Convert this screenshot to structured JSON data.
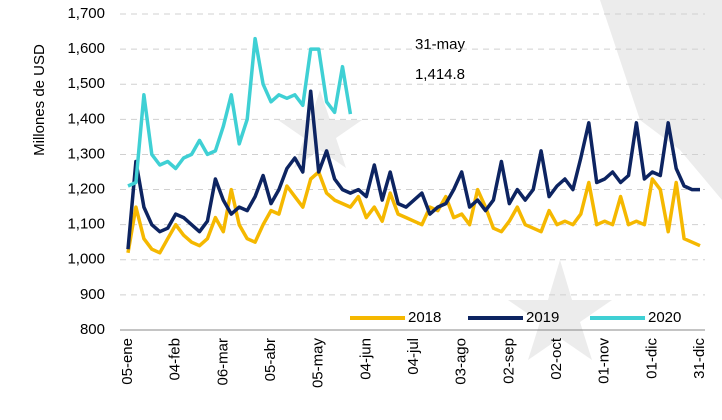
{
  "chart_data": {
    "type": "line",
    "y_label": "Millones de USD",
    "annotations": [
      "31-may",
      "1,414.8"
    ],
    "categories": [
      "05-ene",
      null,
      null,
      null,
      null,
      null,
      "04-feb",
      null,
      null,
      null,
      null,
      null,
      "06-mar",
      null,
      null,
      null,
      null,
      null,
      "05-abr",
      null,
      null,
      null,
      null,
      null,
      "05-may",
      null,
      null,
      null,
      null,
      null,
      "04-jun",
      null,
      null,
      null,
      null,
      null,
      "04-jul",
      null,
      null,
      null,
      null,
      null,
      "03-ago",
      null,
      null,
      null,
      null,
      null,
      "02-sep",
      null,
      null,
      null,
      null,
      null,
      "02-oct",
      null,
      null,
      null,
      null,
      null,
      "01-nov",
      null,
      null,
      null,
      null,
      null,
      "01-dic",
      null,
      null,
      null,
      null,
      null,
      "31-dic"
    ],
    "series": [
      {
        "name": "2018",
        "color": "#f5b800",
        "values": [
          1020,
          1150,
          1060,
          1030,
          1020,
          1060,
          1100,
          1070,
          1050,
          1040,
          1060,
          1120,
          1080,
          1200,
          1100,
          1060,
          1050,
          1100,
          1140,
          1130,
          1210,
          1180,
          1150,
          1230,
          1250,
          1190,
          1170,
          1160,
          1150,
          1180,
          1120,
          1150,
          1110,
          1190,
          1130,
          1120,
          1110,
          1100,
          1150,
          1140,
          1180,
          1120,
          1130,
          1100,
          1200,
          1150,
          1090,
          1080,
          1110,
          1150,
          1100,
          1090,
          1080,
          1140,
          1100,
          1110,
          1100,
          1130,
          1220,
          1100,
          1110,
          1100,
          1180,
          1100,
          1110,
          1100,
          1230,
          1200,
          1080,
          1220,
          1060,
          1050,
          1040
        ]
      },
      {
        "name": "2019",
        "color": "#0d2461",
        "values": [
          1030,
          1280,
          1150,
          1100,
          1080,
          1090,
          1130,
          1120,
          1100,
          1080,
          1110,
          1230,
          1170,
          1130,
          1150,
          1140,
          1180,
          1240,
          1160,
          1200,
          1260,
          1290,
          1250,
          1480,
          1250,
          1310,
          1230,
          1200,
          1190,
          1200,
          1180,
          1270,
          1170,
          1250,
          1160,
          1150,
          1170,
          1190,
          1130,
          1150,
          1160,
          1200,
          1250,
          1150,
          1170,
          1140,
          1170,
          1280,
          1160,
          1200,
          1170,
          1200,
          1310,
          1180,
          1210,
          1230,
          1200,
          1290,
          1390,
          1220,
          1230,
          1250,
          1220,
          1240,
          1390,
          1230,
          1250,
          1240,
          1390,
          1260,
          1210,
          1200,
          1200
        ]
      },
      {
        "name": "2020",
        "color": "#3fd0d4",
        "values": [
          1210,
          1220,
          1470,
          1300,
          1270,
          1280,
          1260,
          1290,
          1300,
          1340,
          1300,
          1310,
          1380,
          1470,
          1330,
          1400,
          1630,
          1500,
          1450,
          1470,
          1460,
          1470,
          1440,
          1600,
          1600,
          1450,
          1420,
          1550,
          1414.8,
          null,
          null,
          null,
          null,
          null,
          null,
          null,
          null,
          null,
          null,
          null,
          null,
          null,
          null,
          null,
          null,
          null,
          null,
          null,
          null,
          null,
          null,
          null,
          null,
          null,
          null,
          null,
          null,
          null,
          null,
          null,
          null,
          null,
          null,
          null,
          null,
          null,
          null,
          null,
          null,
          null,
          null,
          null,
          null
        ]
      }
    ],
    "ylim": [
      800,
      1700
    ],
    "yticks": [
      800,
      900,
      {
        "value": 1000,
        "label": "1,000"
      },
      {
        "value": 1100,
        "label": "1,100"
      },
      {
        "value": 1200,
        "label": "1,200"
      },
      {
        "value": 1300,
        "label": "1,300"
      },
      {
        "value": 1400,
        "label": "1,400"
      },
      {
        "value": 1500,
        "label": "1,500"
      },
      {
        "value": 1600,
        "label": "1,600"
      },
      {
        "value": 1700,
        "label": "1,700"
      }
    ],
    "grid": true
  }
}
